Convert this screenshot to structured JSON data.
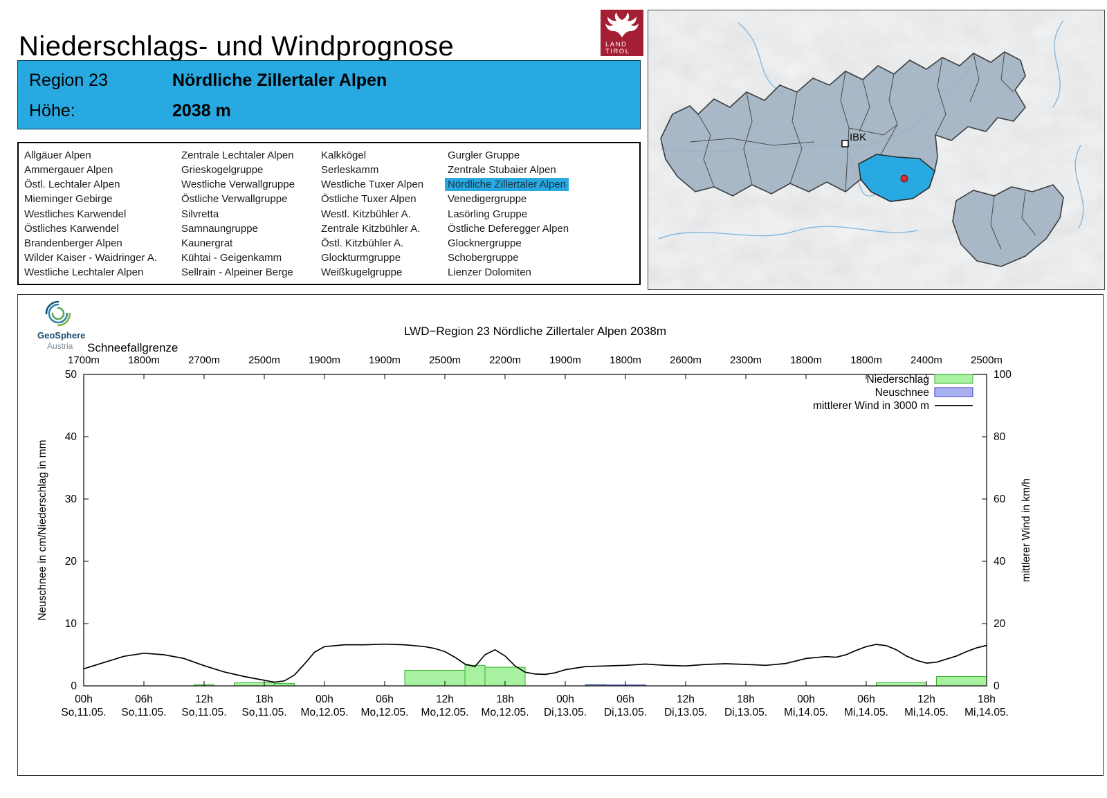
{
  "page": {
    "title": "Niederschlags- und Windprognose"
  },
  "logo": {
    "line1": "LAND",
    "line2": "TIROL"
  },
  "region_header": {
    "label": "Region 23",
    "name": "Nördliche Zillertaler Alpen",
    "hoehe_label": "Höhe:",
    "hoehe_value": "2038 m"
  },
  "region_list": {
    "selected": "Nördliche Zillertaler Alpen",
    "columns": [
      [
        "Allgäuer Alpen",
        "Ammergauer Alpen",
        "Östl. Lechtaler Alpen",
        "Mieminger Gebirge",
        "Westliches Karwendel",
        "Östliches Karwendel",
        "Brandenberger Alpen",
        "Wilder Kaiser - Waidringer A.",
        "Westliche Lechtaler Alpen"
      ],
      [
        "Zentrale Lechtaler Alpen",
        "Grieskogelgruppe",
        "Westliche Verwallgruppe",
        "Östliche Verwallgruppe",
        "Silvretta",
        "Samnaungruppe",
        "Kaunergrat",
        "Kühtai - Geigenkamm",
        "Sellrain - Alpeiner Berge"
      ],
      [
        "Kalkkögel",
        "Serleskamm",
        "Westliche Tuxer Alpen",
        "Östliche Tuxer Alpen",
        "Westl. Kitzbühler A.",
        "Zentrale Kitzbühler A.",
        "Östl. Kitzbühler A.",
        "Glockturmgruppe",
        "Weißkugelgruppe"
      ],
      [
        "Gurgler Gruppe",
        "Zentrale Stubaier Alpen",
        "Nördliche Zillertaler Alpen",
        "Venedigergruppe",
        "Lasörling Gruppe",
        "Östliche Deferegger Alpen",
        "Glocknergruppe",
        "Schobergruppe",
        "Lienzer Dolomiten"
      ]
    ]
  },
  "map": {
    "city_label": "IBK",
    "highlight_color": "#29a9e2",
    "region_fill": "#9fb0c2"
  },
  "geosphere": {
    "name": "GeoSphere",
    "country": "Austria"
  },
  "chart_data": {
    "type": "bar",
    "title": "LWD−Region 23 Nördliche Zillertaler Alpen 2038m",
    "snowline_label": "Schneefallgrenze",
    "snowline_values": [
      "1700m",
      "1800m",
      "2700m",
      "2500m",
      "1900m",
      "1900m",
      "2500m",
      "2200m",
      "1900m",
      "1800m",
      "2600m",
      "2300m",
      "1800m",
      "1800m",
      "2400m",
      "2500m"
    ],
    "ylabel_left": "Neuschnee in cm/Niederschlag in mm",
    "ylabel_right": "mittlerer Wind in km/h",
    "ylim_left": [
      0,
      50
    ],
    "ylim_right": [
      0,
      100
    ],
    "yticks_left": [
      0,
      10,
      20,
      30,
      40,
      50
    ],
    "yticks_right": [
      0,
      20,
      40,
      60,
      80,
      100
    ],
    "x_range_hours": [
      0,
      90
    ],
    "x_ticks": [
      {
        "hour": 0,
        "h": "00h",
        "d": "So,11.05."
      },
      {
        "hour": 6,
        "h": "06h",
        "d": "So,11.05."
      },
      {
        "hour": 12,
        "h": "12h",
        "d": "So,11.05."
      },
      {
        "hour": 18,
        "h": "18h",
        "d": "So,11.05."
      },
      {
        "hour": 24,
        "h": "00h",
        "d": "Mo,12.05."
      },
      {
        "hour": 30,
        "h": "06h",
        "d": "Mo,12.05."
      },
      {
        "hour": 36,
        "h": "12h",
        "d": "Mo,12.05."
      },
      {
        "hour": 42,
        "h": "18h",
        "d": "Mo,12.05."
      },
      {
        "hour": 48,
        "h": "00h",
        "d": "Di,13.05."
      },
      {
        "hour": 54,
        "h": "06h",
        "d": "Di,13.05."
      },
      {
        "hour": 60,
        "h": "12h",
        "d": "Di,13.05."
      },
      {
        "hour": 66,
        "h": "18h",
        "d": "Di,13.05."
      },
      {
        "hour": 72,
        "h": "00h",
        "d": "Mi,14.05."
      },
      {
        "hour": 78,
        "h": "06h",
        "d": "Mi,14.05."
      },
      {
        "hour": 84,
        "h": "12h",
        "d": "Mi,14.05."
      },
      {
        "hour": 90,
        "h": "18h",
        "d": "Mi,14.05."
      }
    ],
    "legend": [
      {
        "label": "Niederschlag",
        "type": "box",
        "fill": "#a7f1a0",
        "stroke": "#35b32f"
      },
      {
        "label": "Neuschnee",
        "type": "box",
        "fill": "#a9b0f0",
        "stroke": "#3a3acc"
      },
      {
        "label": "mittlerer Wind in 3000 m",
        "type": "line",
        "stroke": "#000000"
      }
    ],
    "colors": {
      "precip_fill": "#a7f1a0",
      "precip_stroke": "#35b32f",
      "snow_fill": "#a9b0f0",
      "snow_stroke": "#3a3acc",
      "wind": "#000000"
    },
    "precipitation_mm": [
      {
        "start": 11,
        "end": 13,
        "value": 0.2
      },
      {
        "start": 15,
        "end": 19,
        "value": 0.5
      },
      {
        "start": 19,
        "end": 21,
        "value": 0.4
      },
      {
        "start": 32,
        "end": 38,
        "value": 2.5
      },
      {
        "start": 38,
        "end": 40,
        "value": 3.3
      },
      {
        "start": 40,
        "end": 44,
        "value": 3.0
      },
      {
        "start": 50,
        "end": 52,
        "value": 0.2
      },
      {
        "start": 53,
        "end": 55,
        "value": 0.1
      },
      {
        "start": 79,
        "end": 84,
        "value": 0.5
      },
      {
        "start": 85,
        "end": 90,
        "value": 1.5
      }
    ],
    "new_snow_cm": [
      {
        "start": 50,
        "end": 56,
        "value": 0.15
      }
    ],
    "wind_kmh": [
      [
        0,
        5.5
      ],
      [
        2,
        7.5
      ],
      [
        4,
        9.5
      ],
      [
        6,
        10.5
      ],
      [
        8,
        10
      ],
      [
        10,
        8.8
      ],
      [
        12,
        6.5
      ],
      [
        14,
        4.5
      ],
      [
        16,
        3
      ],
      [
        18,
        1.8
      ],
      [
        19,
        1.2
      ],
      [
        20,
        1.6
      ],
      [
        21,
        3.5
      ],
      [
        22,
        7
      ],
      [
        23,
        10.8
      ],
      [
        24,
        12.6
      ],
      [
        26,
        13.2
      ],
      [
        28,
        13.2
      ],
      [
        30,
        13.4
      ],
      [
        32,
        13.2
      ],
      [
        34,
        12.6
      ],
      [
        35,
        12
      ],
      [
        36,
        11
      ],
      [
        37,
        9.2
      ],
      [
        38,
        7
      ],
      [
        39,
        6.2
      ],
      [
        40,
        10
      ],
      [
        41,
        11.6
      ],
      [
        42,
        9.6
      ],
      [
        43,
        6.4
      ],
      [
        44,
        4.4
      ],
      [
        45,
        3.8
      ],
      [
        46,
        3.7
      ],
      [
        47,
        4.2
      ],
      [
        48,
        5.2
      ],
      [
        50,
        6.2
      ],
      [
        52,
        6.4
      ],
      [
        54,
        6.6
      ],
      [
        56,
        7
      ],
      [
        58,
        6.6
      ],
      [
        60,
        6.4
      ],
      [
        62,
        6.9
      ],
      [
        64,
        7.1
      ],
      [
        66,
        6.9
      ],
      [
        68,
        6.6
      ],
      [
        70,
        7.2
      ],
      [
        72,
        8.8
      ],
      [
        74,
        9.4
      ],
      [
        75,
        9.2
      ],
      [
        76,
        10
      ],
      [
        77,
        11.4
      ],
      [
        78,
        12.6
      ],
      [
        79,
        13.3
      ],
      [
        80,
        12.9
      ],
      [
        81,
        11.6
      ],
      [
        82,
        9.6
      ],
      [
        83,
        8.2
      ],
      [
        84,
        7.3
      ],
      [
        85,
        7.6
      ],
      [
        86,
        8.6
      ],
      [
        87,
        9.6
      ],
      [
        88,
        11
      ],
      [
        89,
        12.2
      ],
      [
        90,
        13
      ]
    ]
  }
}
